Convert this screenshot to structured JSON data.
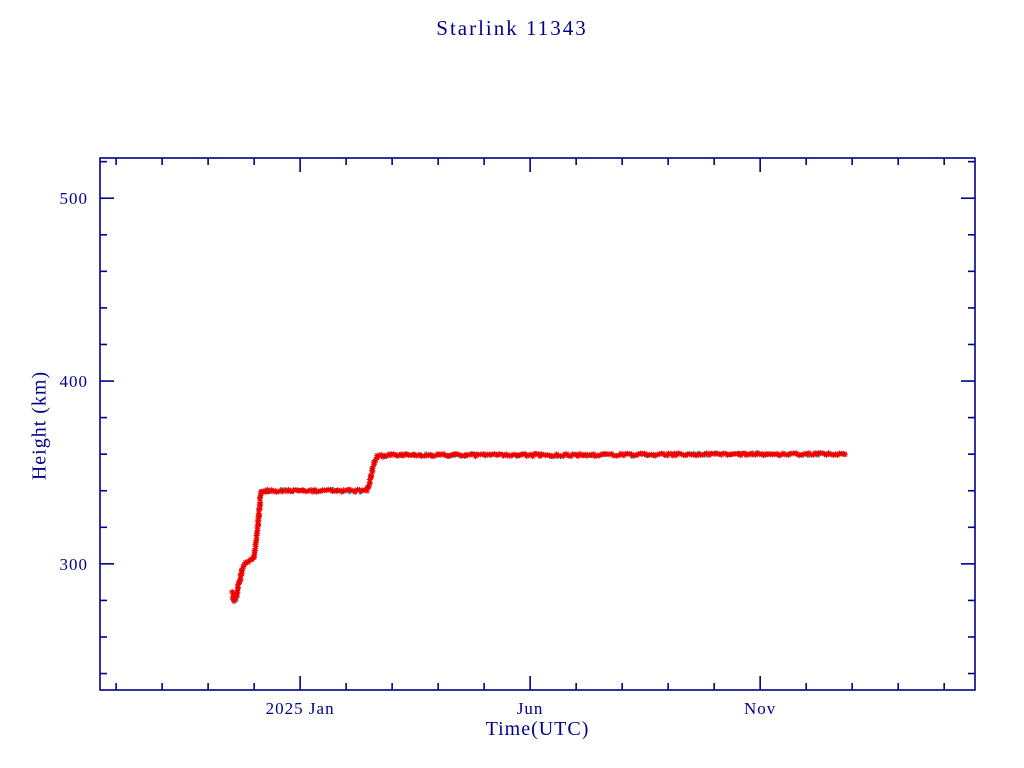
{
  "page": {
    "background_color": "#ffffff"
  },
  "chart_data": {
    "type": "scatter",
    "title": "Starlink 11343",
    "xlabel": "Time(UTC)",
    "ylabel": "Height (km)",
    "axis_color": "#00008b",
    "marker_color": "#ee0000",
    "underlay_marker_color": "#00c8c8",
    "grid": false,
    "legend": "none",
    "x_unit": "months relative to 2025 Jan 1",
    "xlim": [
      -4.35,
      14.67
    ],
    "ylim": [
      231,
      522
    ],
    "x_major_ticks": [
      {
        "t": 0,
        "label": "2025 Jan"
      },
      {
        "t": 5,
        "label": "Jun"
      },
      {
        "t": 10,
        "label": "Nov"
      }
    ],
    "x_minor_step": 1,
    "y_major_ticks": [
      300,
      400,
      500
    ],
    "y_minor_step": 20,
    "series": [
      {
        "name": "orbital-height",
        "marker": "asterisk",
        "points": [
          [
            -1.47,
            284
          ],
          [
            -1.44,
            280
          ],
          [
            -1.42,
            283
          ],
          [
            -1.39,
            281
          ],
          [
            -1.36,
            286
          ],
          [
            -1.31,
            291
          ],
          [
            -1.27,
            296
          ],
          [
            -1.22,
            300
          ],
          [
            -1.15,
            301
          ],
          [
            -1.07,
            302
          ],
          [
            -1.0,
            304
          ],
          [
            -0.96,
            312
          ],
          [
            -0.91,
            324
          ],
          [
            -0.87,
            334
          ],
          [
            -0.84,
            340
          ],
          [
            1.45,
            340
          ],
          [
            1.5,
            343
          ],
          [
            1.56,
            350
          ],
          [
            1.62,
            356
          ],
          [
            1.68,
            359
          ],
          [
            2.2,
            359.5
          ],
          [
            6.0,
            359.5
          ],
          [
            9.0,
            360
          ],
          [
            11.85,
            360
          ]
        ]
      }
    ]
  }
}
